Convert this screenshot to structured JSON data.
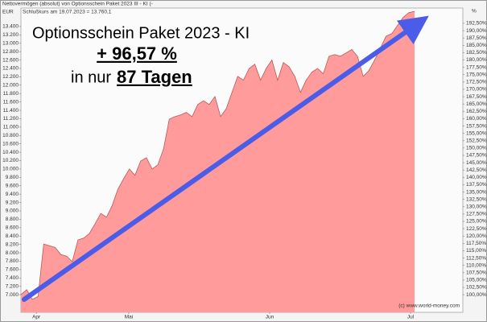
{
  "chart_data": {
    "type": "area",
    "header": "Nettovermögen (absolut) von Optionsschein Paket 2023 III - KI (-",
    "subheader": "Schlußkurs am 19.07.2023 = 13.760,1",
    "ylabel": "EUR",
    "y2label": "%",
    "source": "(c) www.world-money.com",
    "annotations": {
      "headline": "Optionsschein Paket 2023 - KI",
      "gain": "+ 96,57 %",
      "prefix": "in nur",
      "days": "87 Tagen"
    },
    "series": [
      {
        "name": "Nettovermögen",
        "color": "#ff9b9b",
        "line_color": "#b85a5a",
        "values": [
          7000,
          7120,
          6890,
          6960,
          8210,
          8170,
          8130,
          7960,
          7920,
          7790,
          8310,
          8350,
          8460,
          8690,
          8940,
          8850,
          9130,
          9520,
          9770,
          10000,
          9850,
          10190,
          10270,
          10000,
          10100,
          10480,
          11190,
          11250,
          11290,
          11350,
          11250,
          11540,
          11630,
          11540,
          11730,
          11250,
          11440,
          11830,
          12210,
          12120,
          12400,
          12500,
          12120,
          12400,
          12600,
          12120,
          12540,
          12440,
          12210,
          11830,
          12120,
          12310,
          12400,
          12270,
          12690,
          12730,
          12690,
          12770,
          12850,
          12690,
          12210,
          12350,
          12600,
          12880,
          13170,
          13230,
          13420,
          13620,
          13730,
          13760
        ]
      }
    ],
    "xlim": [
      0,
      69
    ],
    "xticks": [
      {
        "value": 2.7,
        "label": "Apr"
      },
      {
        "value": 18.9,
        "label": "Mai"
      },
      {
        "value": 43.6,
        "label": "Jun"
      },
      {
        "value": 68.3,
        "label": "Jul"
      }
    ],
    "ylim": [
      6580,
      13840
    ],
    "yticks": [
      {
        "value": 7000,
        "label": "7.000"
      },
      {
        "value": 7200,
        "label": "7.200"
      },
      {
        "value": 7400,
        "label": "7.400"
      },
      {
        "value": 7600,
        "label": "7.600"
      },
      {
        "value": 7800,
        "label": "7.800"
      },
      {
        "value": 8000,
        "label": "8.000"
      },
      {
        "value": 8200,
        "label": "8.200"
      },
      {
        "value": 8400,
        "label": "8.400"
      },
      {
        "value": 8600,
        "label": "8.600"
      },
      {
        "value": 8800,
        "label": "8.800"
      },
      {
        "value": 9000,
        "label": "9.000"
      },
      {
        "value": 9200,
        "label": "9.200"
      },
      {
        "value": 9400,
        "label": "9.400"
      },
      {
        "value": 9600,
        "label": "9.600"
      },
      {
        "value": 9800,
        "label": "9.800"
      },
      {
        "value": 10000,
        "label": "10.000"
      },
      {
        "value": 10200,
        "label": "10.200"
      },
      {
        "value": 10400,
        "label": "10.400"
      },
      {
        "value": 10600,
        "label": "10.600"
      },
      {
        "value": 10800,
        "label": "10.800"
      },
      {
        "value": 11000,
        "label": "11.000"
      },
      {
        "value": 11200,
        "label": "11.200"
      },
      {
        "value": 11400,
        "label": "11.400"
      },
      {
        "value": 11600,
        "label": "11.600"
      },
      {
        "value": 11800,
        "label": "11.800"
      },
      {
        "value": 12000,
        "label": "12.000"
      },
      {
        "value": 12200,
        "label": "12.200"
      },
      {
        "value": 12400,
        "label": "12.400"
      },
      {
        "value": 12600,
        "label": "12.600"
      },
      {
        "value": 12800,
        "label": "12.800"
      },
      {
        "value": 13000,
        "label": "13.000"
      },
      {
        "value": 13200,
        "label": "13.200"
      },
      {
        "value": 13400,
        "label": "13.400"
      }
    ],
    "y2lim": [
      94,
      197.7
    ],
    "y2ticks": [
      {
        "value": 100,
        "label": "100,00%"
      },
      {
        "value": 102.5,
        "label": "102,50%"
      },
      {
        "value": 105,
        "label": "105,00%"
      },
      {
        "value": 107.5,
        "label": "107,50%"
      },
      {
        "value": 110,
        "label": "110,00%"
      },
      {
        "value": 112.5,
        "label": "112,50%"
      },
      {
        "value": 115,
        "label": "115,00%"
      },
      {
        "value": 117.5,
        "label": "117,50%"
      },
      {
        "value": 120,
        "label": "120,00%"
      },
      {
        "value": 122.5,
        "label": "122,50%"
      },
      {
        "value": 125,
        "label": "125,00%"
      },
      {
        "value": 127.5,
        "label": "127,50%"
      },
      {
        "value": 130,
        "label": "130,00%"
      },
      {
        "value": 132.5,
        "label": "132,50%"
      },
      {
        "value": 135,
        "label": "135,00%"
      },
      {
        "value": 137.5,
        "label": "137,50%"
      },
      {
        "value": 140,
        "label": "140,00%"
      },
      {
        "value": 142.5,
        "label": "142,50%"
      },
      {
        "value": 145,
        "label": "145,00%"
      },
      {
        "value": 147.5,
        "label": "147,50%"
      },
      {
        "value": 150,
        "label": "150,00%"
      },
      {
        "value": 152.5,
        "label": "152,50%"
      },
      {
        "value": 155,
        "label": "155,00%"
      },
      {
        "value": 157.5,
        "label": "157,50%"
      },
      {
        "value": 160,
        "label": "160,00%"
      },
      {
        "value": 162.5,
        "label": "162,50%"
      },
      {
        "value": 165,
        "label": "165,00%"
      },
      {
        "value": 167.5,
        "label": "167,50%"
      },
      {
        "value": 170,
        "label": "170,00%"
      },
      {
        "value": 172.5,
        "label": "172,50%"
      },
      {
        "value": 175,
        "label": "175,00%"
      },
      {
        "value": 177.5,
        "label": "177,50%"
      },
      {
        "value": 180,
        "label": "180,00%"
      },
      {
        "value": 182.5,
        "label": "182,50%"
      },
      {
        "value": 185,
        "label": "185,00%"
      },
      {
        "value": 187.5,
        "label": "187,50%"
      },
      {
        "value": 190,
        "label": "190,00%"
      },
      {
        "value": 192.5,
        "label": "192,50%"
      }
    ],
    "grid": false
  }
}
